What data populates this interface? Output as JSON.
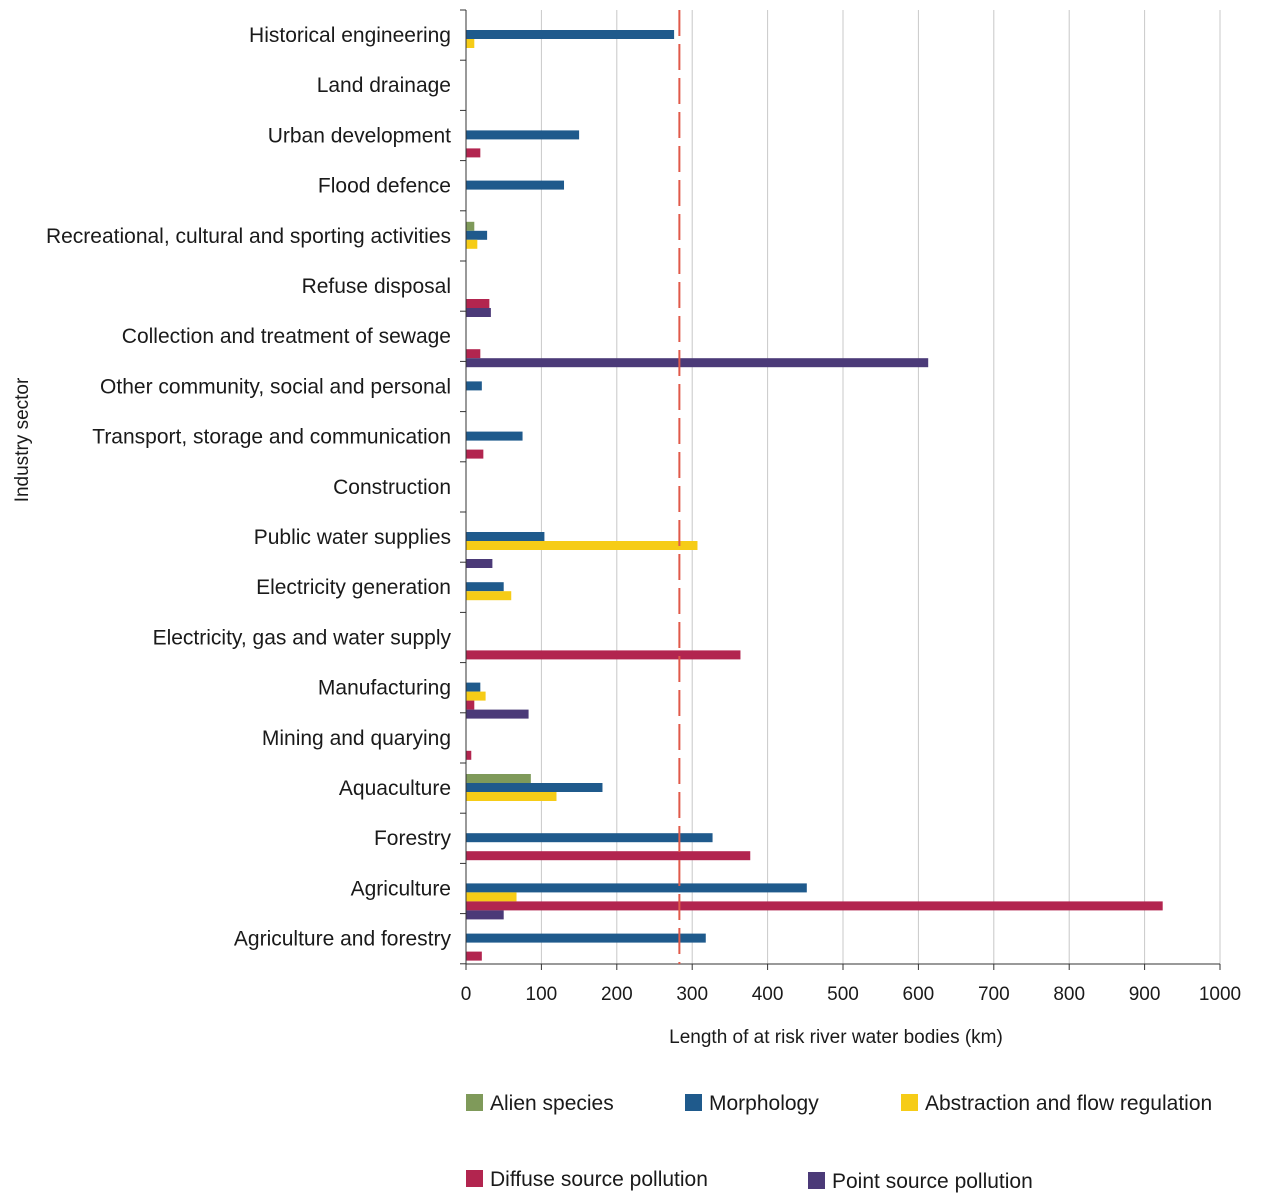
{
  "chart_data": {
    "type": "bar",
    "orientation": "horizontal",
    "xlabel": "Length of at risk river water bodies (km)",
    "ylabel": "Industry sector",
    "xlim": [
      0,
      1000
    ],
    "xticks": [
      0,
      100,
      200,
      300,
      400,
      500,
      600,
      700,
      800,
      900,
      1000
    ],
    "grid": "vertical",
    "legend_position": "bottom",
    "reference_line": {
      "value": 283,
      "style": "dashed",
      "color": "#e05a4a"
    },
    "categories": [
      "Historical engineering",
      "Land drainage",
      "Urban development",
      "Flood defence",
      "Recreational, cultural and sporting activities",
      "Refuse disposal",
      "Collection and treatment of sewage",
      "Other community, social and personal",
      "Transport, storage and communication",
      "Construction",
      "Public water supplies",
      "Electricity generation",
      "Electricity, gas and water supply",
      "Manufacturing",
      "Mining and quarying",
      "Aquaculture",
      "Forestry",
      "Agriculture",
      "Agriculture and forestry"
    ],
    "series": [
      {
        "name": "Alien species",
        "color": "#7f9a5a",
        "values": [
          0,
          0,
          0,
          0,
          11,
          0,
          0,
          0,
          0,
          0,
          0,
          0,
          0,
          0,
          0,
          86,
          0,
          0,
          0
        ]
      },
      {
        "name": "Morphology",
        "color": "#1f5a8c",
        "values": [
          276,
          0,
          150,
          130,
          28,
          0,
          0,
          21,
          75,
          0,
          104,
          50,
          0,
          19,
          0,
          181,
          327,
          452,
          318
        ]
      },
      {
        "name": "Abstraction and flow regulation",
        "color": "#f6cc17",
        "values": [
          11,
          0,
          0,
          0,
          15,
          0,
          0,
          0,
          0,
          0,
          307,
          60,
          0,
          26,
          0,
          120,
          0,
          67,
          0
        ]
      },
      {
        "name": "Diffuse source pollution",
        "color": "#b2254f",
        "values": [
          0,
          0,
          19,
          0,
          0,
          31,
          19,
          0,
          23,
          0,
          0,
          0,
          364,
          11,
          7,
          0,
          377,
          924,
          21
        ]
      },
      {
        "name": "Point source pollution",
        "color": "#4b3a78",
        "values": [
          0,
          0,
          0,
          0,
          0,
          33,
          613,
          0,
          0,
          0,
          35,
          0,
          0,
          83,
          0,
          0,
          0,
          50,
          0
        ]
      }
    ]
  }
}
